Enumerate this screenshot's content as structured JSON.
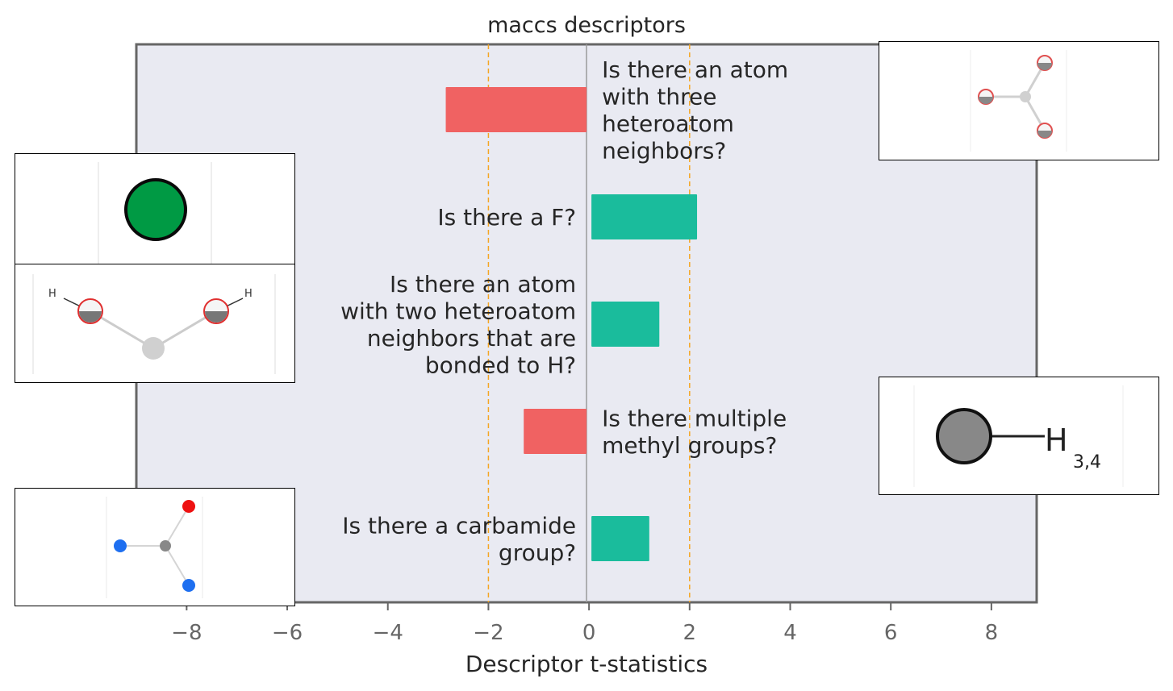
{
  "chart_data": {
    "type": "bar",
    "orientation": "horizontal",
    "title": "maccs descriptors",
    "xlabel": "Descriptor t-statistics",
    "xlim": [
      -9.0,
      8.9
    ],
    "xticks": [
      -8,
      -6,
      -4,
      -2,
      0,
      2,
      4,
      6,
      8
    ],
    "xtick_labels": [
      "−8",
      "−6",
      "−4",
      "−2",
      "0",
      "2",
      "4",
      "6",
      "8"
    ],
    "threshold_lines": [
      -2,
      2
    ],
    "categories": [
      "Is there an atom\nwith three\nheteroatom\nneighbors?",
      "Is there a F?",
      "Is there an atom\nwith two heteroatom\nneighbors that are\nbonded to H?",
      "Is there multiple\nmethyl groups?",
      "Is there a carbamide\ngroup?"
    ],
    "values": [
      -2.8,
      2.1,
      1.35,
      -1.25,
      1.15
    ],
    "positive_color": "#1abc9c",
    "negative_color": "#f06262",
    "threshold_color": "#f5a623",
    "background_color": "#e9eaf2",
    "grid": false
  },
  "insets": {
    "methyl_label": "H",
    "methyl_subscript": "3,4",
    "hydroxyl_label_left": "H",
    "hydroxyl_label_right": "H"
  }
}
